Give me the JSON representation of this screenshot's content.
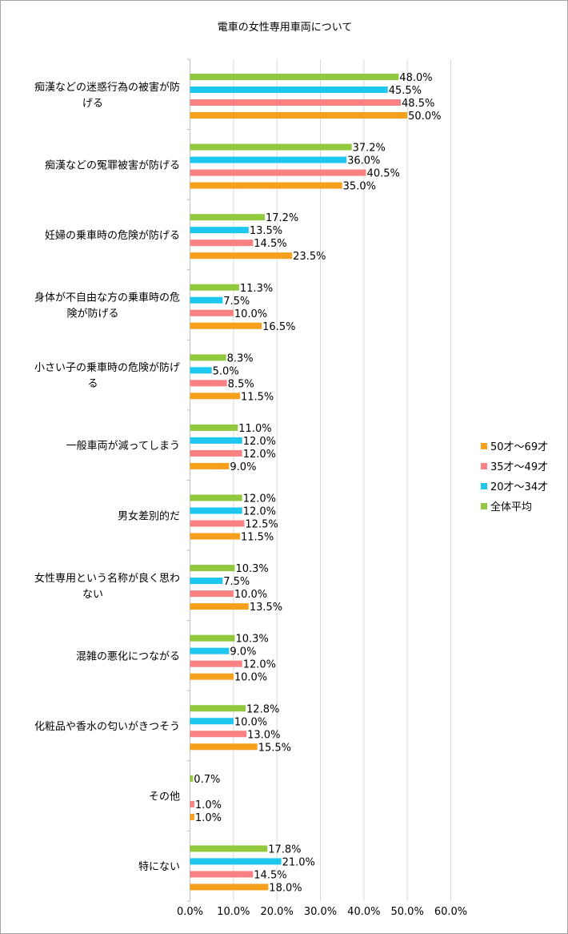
{
  "chart_data": {
    "type": "bar",
    "orientation": "horizontal",
    "title": "電車の女性専用車両について",
    "categories": [
      [
        "痴漢などの迷惑行為の被害が防",
        "げる"
      ],
      [
        "痴漢などの冤罪被害が防げる"
      ],
      [
        "妊婦の乗車時の危険が防げる"
      ],
      [
        "身体が不自由な方の乗車時の危",
        "険が防げる"
      ],
      [
        "小さい子の乗車時の危険が防げ",
        "る"
      ],
      [
        "一般車両が減ってしまう"
      ],
      [
        "男女差別的だ"
      ],
      [
        "女性専用という名称が良く思わ",
        "ない"
      ],
      [
        "混雑の悪化につながる"
      ],
      [
        "化粧品や香水の匂いがきつそう"
      ],
      [
        "その他"
      ],
      [
        "特にない"
      ]
    ],
    "series": [
      {
        "name": "全体平均",
        "color": "#92c83e",
        "values": [
          48.0,
          37.2,
          17.2,
          11.3,
          8.3,
          11.0,
          12.0,
          10.3,
          10.3,
          12.8,
          0.7,
          17.8
        ],
        "labels": [
          "48.0%",
          "37.2%",
          "17.2%",
          "11.3%",
          "8.3%",
          "11.0%",
          "12.0%",
          "10.3%",
          "10.3%",
          "12.8%",
          "0.7%",
          "17.8%"
        ]
      },
      {
        "name": "20才～34才",
        "color": "#1ec7f0",
        "values": [
          45.5,
          36.0,
          13.5,
          7.5,
          5.0,
          12.0,
          12.0,
          7.5,
          9.0,
          10.0,
          0.0,
          21.0
        ],
        "labels": [
          "45.5%",
          "36.0%",
          "13.5%",
          "7.5%",
          "5.0%",
          "12.0%",
          "12.0%",
          "7.5%",
          "9.0%",
          "10.0%",
          "",
          "21.0%"
        ]
      },
      {
        "name": "35才～49才",
        "color": "#f98181",
        "values": [
          48.5,
          40.5,
          14.5,
          10.0,
          8.5,
          12.0,
          12.5,
          10.0,
          12.0,
          13.0,
          1.0,
          14.5
        ],
        "labels": [
          "48.5%",
          "40.5%",
          "14.5%",
          "10.0%",
          "8.5%",
          "12.0%",
          "12.5%",
          "10.0%",
          "12.0%",
          "13.0%",
          "1.0%",
          "14.5%"
        ]
      },
      {
        "name": "50才～69才",
        "color": "#f7a01b",
        "values": [
          50.0,
          35.0,
          23.5,
          16.5,
          11.5,
          9.0,
          11.5,
          13.5,
          10.0,
          15.5,
          1.0,
          18.0
        ],
        "labels": [
          "50.0%",
          "35.0%",
          "23.5%",
          "16.5%",
          "11.5%",
          "9.0%",
          "11.5%",
          "13.5%",
          "10.0%",
          "15.5%",
          "1.0%",
          "18.0%"
        ]
      }
    ],
    "xlim": [
      0,
      60
    ],
    "x_ticks": [
      "0.0%",
      "10.0%",
      "20.0%",
      "30.0%",
      "40.0%",
      "50.0%",
      "60.0%"
    ],
    "legend": {
      "position": "right",
      "entries": [
        "50才～69才",
        "35才～49才",
        "20才～34才",
        "全体平均"
      ]
    },
    "grid": true,
    "xlabel": "",
    "ylabel": ""
  }
}
